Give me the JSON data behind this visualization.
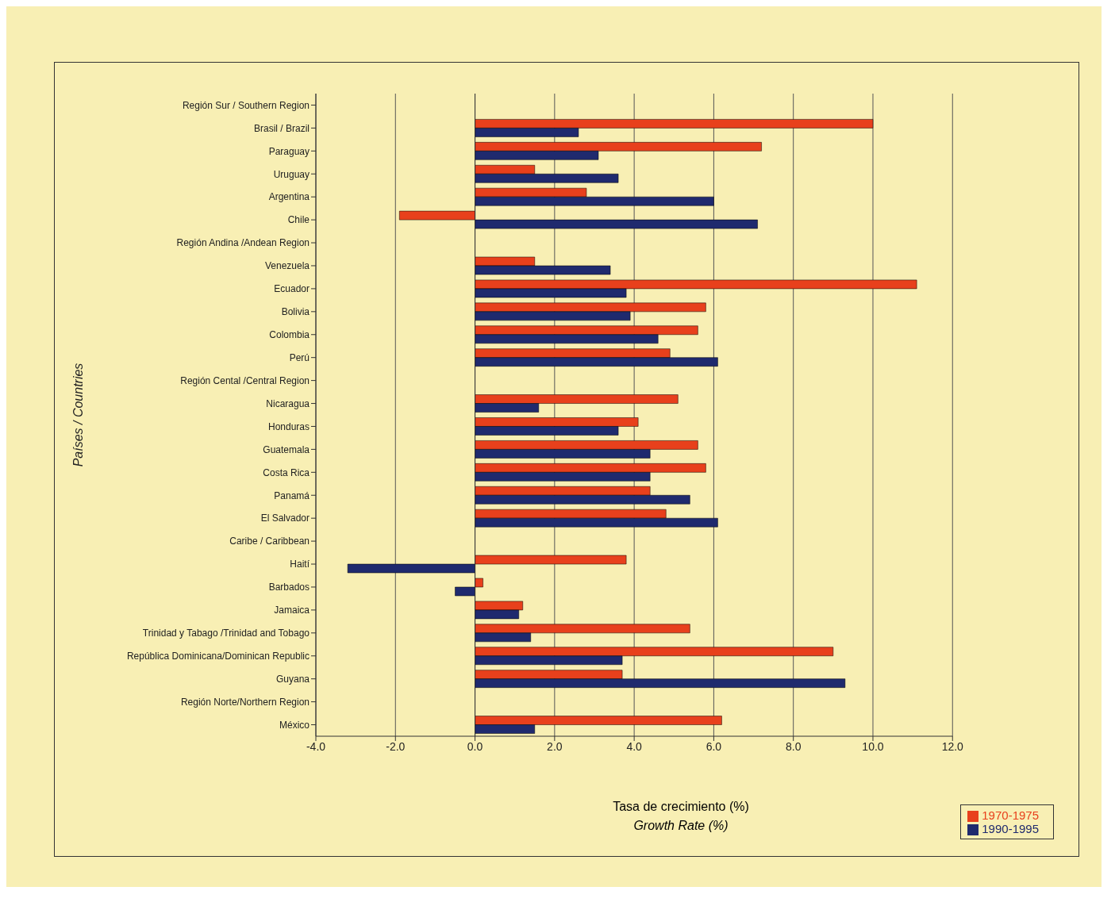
{
  "chart_data": {
    "type": "bar",
    "orientation": "horizontal",
    "xlabel": "Tasa de crecimiento (%)\nGrowth Rate (%)",
    "ylabel": "Países / Countries",
    "categories": [
      "Región Sur / Southern Region",
      "Brasil / Brazil",
      "Paraguay",
      "Uruguay",
      "Argentina",
      "Chile",
      "Región Andina /Andean Region",
      "Venezuela",
      "Ecuador",
      "Bolivia",
      "Colombia",
      "Perú",
      "Región Cental /Central Region",
      "Nicaragua",
      "Honduras",
      "Guatemala",
      "Costa Rica",
      "Panamá",
      "El Salvador",
      "Caribe / Caribbean",
      "Haití",
      "Barbados",
      "Jamaica",
      "Trinidad y Tabago /Trinidad and Tobago",
      "República Dominicana/Dominican Republic",
      "Guyana",
      "Región Norte/Northern Region",
      "México"
    ],
    "series": [
      {
        "name": "1970-1975",
        "color": "#e8401c",
        "values": [
          null,
          10.0,
          7.2,
          1.5,
          2.8,
          -1.9,
          null,
          1.5,
          11.1,
          5.8,
          5.6,
          4.9,
          null,
          5.1,
          4.1,
          5.6,
          5.8,
          4.4,
          4.8,
          null,
          3.8,
          0.2,
          1.2,
          5.4,
          9.0,
          3.7,
          null,
          6.2
        ]
      },
      {
        "name": "1990-1995",
        "color": "#1f2a6e",
        "values": [
          null,
          2.6,
          3.1,
          3.6,
          6.0,
          7.1,
          null,
          3.4,
          3.8,
          3.9,
          4.6,
          6.1,
          null,
          1.6,
          3.6,
          4.4,
          4.4,
          5.4,
          6.1,
          null,
          -3.2,
          -0.5,
          1.1,
          1.4,
          3.7,
          9.3,
          null,
          1.5
        ]
      }
    ],
    "xlim": [
      -4,
      12
    ],
    "xticks": [
      {
        "value": -4,
        "label": "-4.0"
      },
      {
        "value": -2,
        "label": "-2.0"
      },
      {
        "value": 0,
        "label": "0.0"
      },
      {
        "value": 2,
        "label": "2.0"
      },
      {
        "value": 4,
        "label": "4.0"
      },
      {
        "value": 6,
        "label": "6.0"
      },
      {
        "value": 8,
        "label": "8.0"
      },
      {
        "value": 10,
        "label": "10.0"
      },
      {
        "value": 12,
        "label": "12.0"
      }
    ],
    "grid": "x",
    "legend": "bottom right"
  }
}
